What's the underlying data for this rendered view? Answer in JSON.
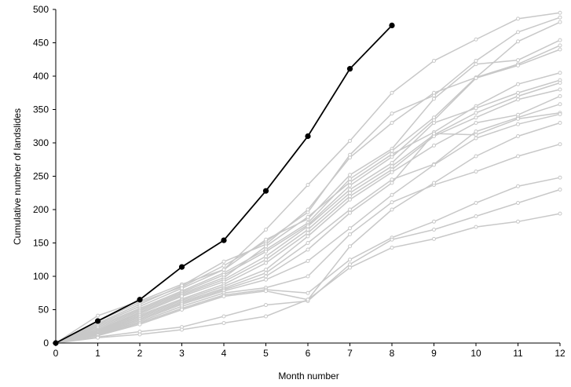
{
  "chart_data": {
    "type": "line",
    "xlabel": "Month number",
    "ylabel": "Cumulative number of landslides",
    "xlim": [
      0,
      12
    ],
    "ylim": [
      0,
      500
    ],
    "x_ticks": [
      "0",
      "1",
      "2",
      "3",
      "4",
      "5",
      "6",
      "7",
      "8",
      "9",
      "10",
      "11",
      "12"
    ],
    "y_ticks": [
      "0",
      "50",
      "100",
      "150",
      "200",
      "250",
      "300",
      "350",
      "400",
      "450",
      "500"
    ],
    "grid": false,
    "legend": "none",
    "highlight_color": "#000000",
    "background_color": "#c8c8c8",
    "highlight_series": {
      "x": [
        0,
        1,
        2,
        3,
        4,
        5,
        6,
        7,
        8
      ],
      "values": [
        0,
        33,
        65,
        114,
        154,
        228,
        310,
        411,
        476
      ]
    },
    "background_series": [
      {
        "values": [
          0,
          41,
          63,
          88,
          110,
          170,
          237,
          303,
          375,
          423,
          455,
          486,
          495
        ]
      },
      {
        "values": [
          0,
          33,
          61,
          84,
          116,
          152,
          196,
          282,
          344,
          371,
          423,
          466,
          488
        ]
      },
      {
        "values": [
          0,
          30,
          58,
          86,
          122,
          148,
          200,
          278,
          330,
          375,
          398,
          452,
          481
        ]
      },
      {
        "values": [
          0,
          28,
          55,
          82,
          110,
          155,
          186,
          252,
          291,
          366,
          418,
          424,
          454
        ]
      },
      {
        "values": [
          0,
          26,
          52,
          78,
          105,
          140,
          180,
          246,
          288,
          338,
          398,
          418,
          446
        ]
      },
      {
        "values": [
          0,
          24,
          50,
          76,
          102,
          137,
          177,
          236,
          279,
          334,
          397,
          416,
          440
        ]
      },
      {
        "values": [
          0,
          22,
          48,
          74,
          98,
          145,
          189,
          241,
          283,
          316,
          355,
          388,
          405
        ]
      },
      {
        "values": [
          0,
          20,
          46,
          72,
          95,
          130,
          175,
          230,
          270,
          330,
          352,
          375,
          394
        ]
      },
      {
        "values": [
          0,
          19,
          44,
          70,
          92,
          125,
          170,
          225,
          265,
          312,
          345,
          370,
          390
        ]
      },
      {
        "values": [
          0,
          18,
          42,
          66,
          88,
          120,
          165,
          220,
          260,
          310,
          338,
          365,
          380
        ]
      },
      {
        "values": [
          0,
          17,
          40,
          64,
          85,
          110,
          160,
          215,
          256,
          296,
          330,
          342,
          370
        ]
      },
      {
        "values": [
          0,
          16,
          38,
          62,
          82,
          105,
          150,
          200,
          245,
          268,
          317,
          338,
          358
        ]
      },
      {
        "values": [
          0,
          15,
          36,
          60,
          80,
          100,
          140,
          195,
          240,
          314,
          312,
          336,
          345
        ]
      },
      {
        "values": [
          0,
          14,
          34,
          58,
          78,
          95,
          123,
          172,
          222,
          267,
          307,
          328,
          343
        ]
      },
      {
        "values": [
          0,
          13,
          32,
          55,
          75,
          83,
          100,
          163,
          211,
          237,
          257,
          280,
          298
        ]
      },
      {
        "values": [
          0,
          12,
          30,
          52,
          72,
          80,
          75,
          125,
          158,
          182,
          210,
          235,
          248
        ]
      },
      {
        "values": [
          0,
          11,
          28,
          50,
          70,
          78,
          65,
          113,
          143,
          156,
          174,
          182,
          194
        ]
      },
      {
        "values": [
          0,
          9,
          17,
          24,
          40,
          57,
          63,
          118,
          155,
          170,
          190,
          210,
          230
        ]
      },
      {
        "values": [
          0,
          8,
          13,
          20,
          30,
          40,
          65,
          145,
          200,
          240,
          280,
          310,
          330
        ]
      }
    ]
  }
}
